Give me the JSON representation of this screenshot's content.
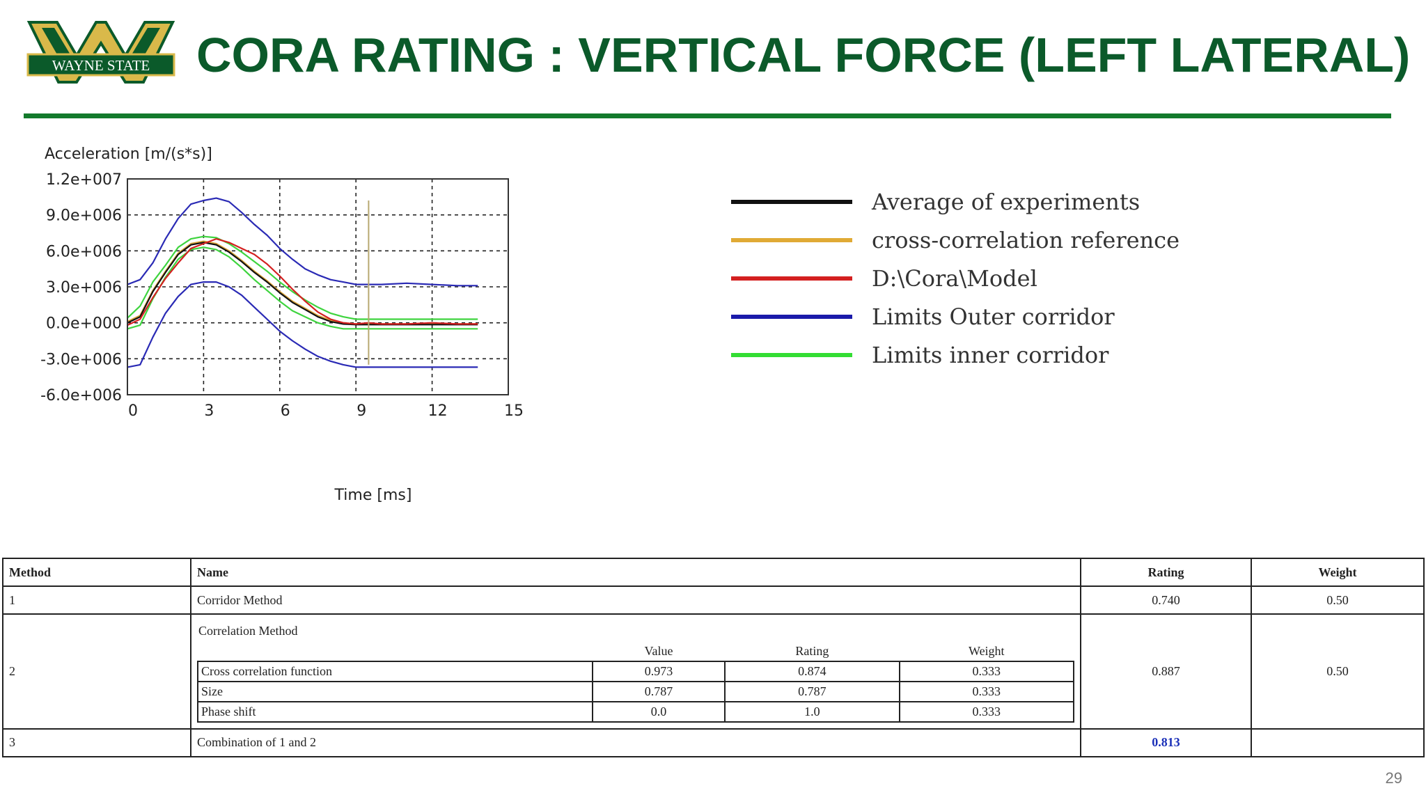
{
  "header": {
    "logo_text": "WAYNE STATE",
    "title": "CORA RATING : VERTICAL FORCE (LEFT LATERAL)"
  },
  "chart_data": {
    "type": "line",
    "ylabel": "Acceleration [m/(s*s)]",
    "xlabel": "Time [ms]",
    "xlim": [
      0,
      15
    ],
    "ylim": [
      -6000000,
      12000000
    ],
    "x_ticks": [
      0,
      3,
      6,
      9,
      12,
      15
    ],
    "x_tick_labels": [
      "0",
      "3",
      "6",
      "9",
      "12",
      "15"
    ],
    "y_ticks": [
      12000000,
      9000000,
      6000000,
      3000000,
      0,
      -3000000,
      -6000000
    ],
    "y_tick_labels": [
      "1.2e+007",
      "9.0e+006",
      "6.0e+006",
      "3.0e+006",
      "0.0e+000",
      "-3.0e+006",
      "-6.0e+006"
    ],
    "grid": true,
    "series": [
      {
        "name": "Limits Outer corridor",
        "role": "outer-upper",
        "color": "#2a2ab5",
        "x": [
          0,
          0.5,
          1.0,
          1.5,
          2.0,
          2.5,
          3.0,
          3.5,
          4.0,
          4.5,
          5.0,
          5.5,
          6.0,
          6.5,
          7.0,
          7.5,
          8.0,
          8.5,
          9.0,
          10.0,
          11.0,
          12.0,
          13.0,
          13.8
        ],
        "y": [
          3200000,
          3600000,
          5000000,
          7000000,
          8700000,
          9900000,
          10200000,
          10400000,
          10100000,
          9200000,
          8200000,
          7300000,
          6200000,
          5300000,
          4500000,
          4000000,
          3600000,
          3400000,
          3200000,
          3200000,
          3300000,
          3200000,
          3100000,
          3100000
        ]
      },
      {
        "name": "Limits Outer corridor",
        "role": "outer-lower",
        "color": "#2a2ab5",
        "x": [
          0,
          0.5,
          1.0,
          1.5,
          2.0,
          2.5,
          3.0,
          3.5,
          4.0,
          4.5,
          5.0,
          5.5,
          6.0,
          6.5,
          7.0,
          7.5,
          8.0,
          8.5,
          9.0,
          10.0,
          11.0,
          12.0,
          13.0,
          13.8
        ],
        "y": [
          -3700000,
          -3500000,
          -1200000,
          800000,
          2200000,
          3200000,
          3400000,
          3400000,
          3000000,
          2300000,
          1300000,
          300000,
          -700000,
          -1500000,
          -2200000,
          -2800000,
          -3200000,
          -3500000,
          -3700000,
          -3700000,
          -3700000,
          -3700000,
          -3700000,
          -3700000
        ]
      },
      {
        "name": "Limits inner corridor",
        "role": "inner-upper",
        "color": "#3ed43e",
        "x": [
          0,
          0.5,
          1.0,
          1.5,
          2.0,
          2.5,
          3.0,
          3.5,
          4.0,
          4.5,
          5.0,
          5.5,
          6.0,
          6.5,
          7.0,
          7.5,
          8.0,
          8.5,
          9.0,
          10.0,
          11.0,
          12.0,
          13.0,
          13.8
        ],
        "y": [
          400000,
          1400000,
          3400000,
          4800000,
          6300000,
          7000000,
          7200000,
          7100000,
          6600000,
          5900000,
          5100000,
          4300000,
          3400000,
          2600000,
          1900000,
          1300000,
          800000,
          500000,
          300000,
          300000,
          300000,
          300000,
          300000,
          300000
        ]
      },
      {
        "name": "Limits inner corridor",
        "role": "inner-lower",
        "color": "#3ed43e",
        "x": [
          0,
          0.5,
          1.0,
          1.5,
          2.0,
          2.5,
          3.0,
          3.5,
          4.0,
          4.5,
          5.0,
          5.5,
          6.0,
          6.5,
          7.0,
          7.5,
          8.0,
          8.5,
          9.0,
          10.0,
          11.0,
          12.0,
          13.0,
          13.8
        ],
        "y": [
          -500000,
          -200000,
          2000000,
          3800000,
          5300000,
          6100000,
          6300000,
          6100000,
          5500000,
          4600000,
          3600000,
          2700000,
          1800000,
          1000000,
          500000,
          0,
          -300000,
          -500000,
          -500000,
          -500000,
          -500000,
          -500000,
          -500000,
          -500000
        ]
      },
      {
        "name": "cross-correlation reference",
        "role": "reference",
        "color": "#d9a53a",
        "x": [
          0,
          0.5,
          1.0,
          1.5,
          2.0,
          2.5,
          3.0,
          3.5,
          4.0,
          4.5,
          5.0,
          5.5,
          6.0,
          6.5,
          7.0,
          7.5,
          8.0,
          8.5,
          9.0,
          10.0,
          11.0,
          12.0,
          13.0,
          13.8
        ],
        "y": [
          100000,
          600000,
          2700000,
          4300000,
          5800000,
          6600000,
          6800000,
          6600000,
          6000000,
          5200000,
          4300000,
          3500000,
          2600000,
          1800000,
          1200000,
          600000,
          200000,
          0,
          -100000,
          -100000,
          -100000,
          -100000,
          -100000,
          -100000
        ]
      },
      {
        "name": "Average of experiments",
        "role": "average",
        "color": "#111111",
        "x": [
          0,
          0.5,
          1.0,
          1.5,
          2.0,
          2.5,
          3.0,
          3.5,
          4.0,
          4.5,
          5.0,
          5.5,
          6.0,
          6.5,
          7.0,
          7.5,
          8.0,
          8.5,
          9.0,
          10.0,
          11.0,
          12.0,
          13.0,
          13.8
        ],
        "y": [
          0,
          500000,
          2600000,
          4200000,
          5700000,
          6500000,
          6700000,
          6500000,
          5900000,
          5100000,
          4200000,
          3400000,
          2500000,
          1700000,
          1100000,
          500000,
          100000,
          -100000,
          -150000,
          -150000,
          -150000,
          -150000,
          -150000,
          -150000
        ]
      },
      {
        "name": "D:\\Cora\\Model",
        "role": "model",
        "color": "#d42020",
        "x": [
          0,
          0.5,
          1.0,
          1.5,
          2.0,
          2.5,
          3.0,
          3.5,
          4.0,
          4.5,
          5.0,
          5.5,
          6.0,
          6.5,
          7.0,
          7.5,
          8.0,
          8.5,
          9.0,
          9.5,
          10.0,
          11.0,
          12.0,
          13.0,
          13.8
        ],
        "y": [
          -200000,
          300000,
          2100000,
          3700000,
          5000000,
          6200000,
          6600000,
          7000000,
          6700000,
          6200000,
          5700000,
          4900000,
          3900000,
          2800000,
          1800000,
          900000,
          300000,
          0,
          -100000,
          0,
          -100000,
          -100000,
          0,
          -100000,
          -100000
        ]
      },
      {
        "name": "shift marker",
        "role": "marker",
        "color": "#b8a870",
        "x": [
          9.5,
          9.5
        ],
        "y": [
          10200000,
          -3500000
        ]
      }
    ]
  },
  "legend": [
    {
      "label": "Average of experiments",
      "color": "#111111"
    },
    {
      "label": "cross-correlation reference",
      "color": "#e0aa35"
    },
    {
      "label": "D:\\Cora\\Model",
      "color": "#d42020"
    },
    {
      "label": "Limits Outer corridor",
      "color": "#1a1aaa"
    },
    {
      "label": "Limits inner corridor",
      "color": "#33dd33"
    }
  ],
  "table": {
    "headers": {
      "method": "Method",
      "name": "Name",
      "rating": "Rating",
      "weight": "Weight"
    },
    "row1": {
      "method": "1",
      "name": "Corridor Method",
      "rating": "0.740",
      "weight": "0.50"
    },
    "row2": {
      "method": "2",
      "name": "Correlation Method",
      "rating": "0.887",
      "weight": "0.50",
      "sub_headers": {
        "value": "Value",
        "rating": "Rating",
        "weight": "Weight"
      },
      "sub_rows": [
        {
          "name": "Cross correlation function",
          "value": "0.973",
          "rating": "0.874",
          "weight": "0.333"
        },
        {
          "name": "Size",
          "value": "0.787",
          "rating": "0.787",
          "weight": "0.333"
        },
        {
          "name": "Phase shift",
          "value": "0.0",
          "rating": "1.0",
          "weight": "0.333"
        }
      ]
    },
    "row3": {
      "method": "3",
      "name": "Combination of 1 and 2",
      "rating": "0.813",
      "weight": ""
    }
  },
  "footer": {
    "page_number": "29"
  },
  "colors": {
    "brand_green": "#0b5a2a",
    "rule_green": "#137a2c",
    "logo_gold": "#d9b94a",
    "highlight_blue": "#1a2fb8"
  }
}
